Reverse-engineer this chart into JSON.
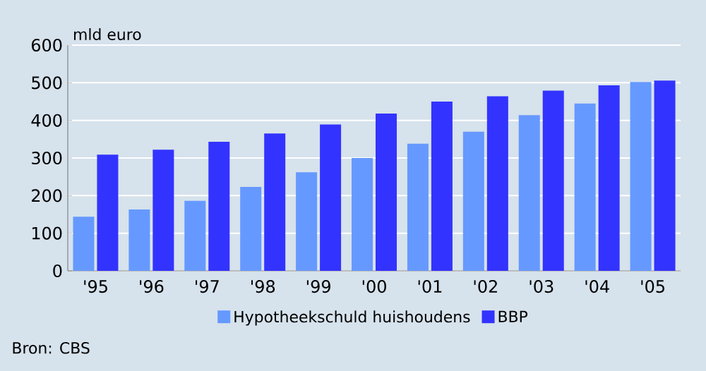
{
  "chart_data": {
    "type": "bar",
    "ylabel": "mld euro",
    "categories": [
      "'95",
      "'96",
      "'97",
      "'98",
      "'99",
      "'00",
      "'01",
      "'02",
      "'03",
      "'04",
      "'05"
    ],
    "series": [
      {
        "name": "Hypotheekschuld huishoudens",
        "color": "#6699ff",
        "values": [
          144,
          163,
          186,
          223,
          262,
          300,
          338,
          370,
          414,
          445,
          502
        ]
      },
      {
        "name": "BBP",
        "color": "#3333ff",
        "values": [
          309,
          322,
          343,
          365,
          389,
          418,
          450,
          464,
          479,
          493,
          506
        ]
      }
    ],
    "ylim": [
      0,
      600
    ],
    "yticks": [
      0,
      100,
      200,
      300,
      400,
      500,
      600
    ],
    "grid": "y",
    "legend": "bottom",
    "annotations": [
      "Bron: CBS"
    ]
  }
}
